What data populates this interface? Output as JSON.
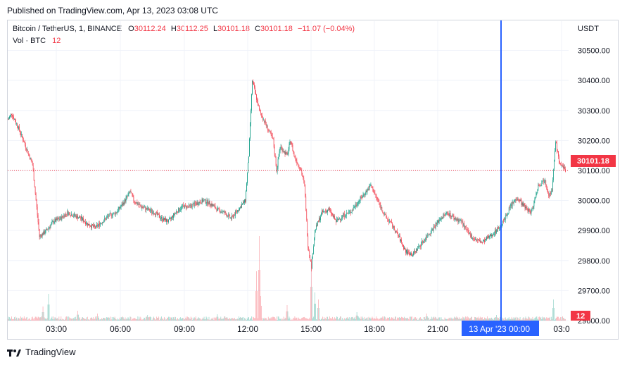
{
  "header": {
    "published": "Published on TradingView.com, Apr 13, 2023 03:08 UTC"
  },
  "legend": {
    "symbol": "Bitcoin / TetherUS, 1, BINANCE",
    "o_label": "O",
    "o_value": "30112.24",
    "h_label": "H",
    "h_value": "30112.25",
    "l_label": "L",
    "l_value": "30101.18",
    "c_label": "C",
    "c_value": "30101.18",
    "change": "−11.07 (−0.04%)",
    "vol_label": "Vol · BTC",
    "vol_value": "12"
  },
  "price_axis": {
    "currency": "USDT",
    "last_price": "30101.18",
    "volume_badge": "12"
  },
  "crosshair": {
    "label": "13 Apr '23   00:00"
  },
  "footer": {
    "brand": "TradingView"
  },
  "colors": {
    "up": "#089981",
    "down": "#f23645",
    "crosshair": "#2962ff",
    "grid": "#f0f3fa"
  },
  "chart_data": {
    "type": "candlestick",
    "title": "Bitcoin / TetherUS, 1, BINANCE",
    "ylabel": "USDT",
    "ylim": [
      29560,
      30560
    ],
    "yticks": [
      29600,
      29700,
      29800,
      29900,
      30000,
      30100,
      30200,
      30300,
      30400,
      30500
    ],
    "ytick_labels": [
      "29600.00",
      "29700.00",
      "29800.00",
      "29900.00",
      "30000.00",
      "30100.00",
      "30200.00",
      "30300.00",
      "30400.00",
      "30500.00"
    ],
    "xtick_labels": [
      "03:00",
      "06:00",
      "09:00",
      "12:00",
      "15:00",
      "18:00",
      "21:00",
      "00:00",
      "03:0"
    ],
    "last_price": 30101.18,
    "price_path": [
      [
        0,
        30270
      ],
      [
        5,
        30290
      ],
      [
        15,
        30240
      ],
      [
        25,
        30180
      ],
      [
        35,
        30120
      ],
      [
        40,
        30000
      ],
      [
        45,
        29880
      ],
      [
        55,
        29900
      ],
      [
        65,
        29930
      ],
      [
        75,
        29940
      ],
      [
        85,
        29960
      ],
      [
        95,
        29950
      ],
      [
        105,
        29940
      ],
      [
        115,
        29920
      ],
      [
        125,
        29910
      ],
      [
        135,
        29930
      ],
      [
        145,
        29950
      ],
      [
        155,
        29960
      ],
      [
        165,
        29990
      ],
      [
        175,
        30030
      ],
      [
        180,
        30000
      ],
      [
        190,
        29980
      ],
      [
        200,
        29970
      ],
      [
        210,
        29960
      ],
      [
        220,
        29940
      ],
      [
        230,
        29930
      ],
      [
        240,
        29960
      ],
      [
        250,
        29980
      ],
      [
        260,
        29980
      ],
      [
        270,
        29990
      ],
      [
        280,
        30000
      ],
      [
        290,
        29990
      ],
      [
        300,
        29970
      ],
      [
        310,
        29960
      ],
      [
        320,
        29940
      ],
      [
        330,
        29970
      ],
      [
        340,
        30000
      ],
      [
        345,
        30150
      ],
      [
        350,
        30400
      ],
      [
        360,
        30300
      ],
      [
        370,
        30250
      ],
      [
        380,
        30200
      ],
      [
        385,
        30100
      ],
      [
        390,
        30180
      ],
      [
        400,
        30150
      ],
      [
        405,
        30200
      ],
      [
        410,
        30150
      ],
      [
        420,
        30100
      ],
      [
        425,
        30050
      ],
      [
        430,
        29850
      ],
      [
        435,
        29780
      ],
      [
        440,
        29900
      ],
      [
        450,
        29960
      ],
      [
        460,
        29970
      ],
      [
        470,
        29930
      ],
      [
        480,
        29950
      ],
      [
        490,
        29960
      ],
      [
        500,
        29990
      ],
      [
        510,
        30020
      ],
      [
        520,
        30050
      ],
      [
        530,
        30000
      ],
      [
        540,
        29950
      ],
      [
        550,
        29920
      ],
      [
        560,
        29880
      ],
      [
        570,
        29830
      ],
      [
        580,
        29820
      ],
      [
        590,
        29850
      ],
      [
        600,
        29880
      ],
      [
        610,
        29910
      ],
      [
        620,
        29940
      ],
      [
        630,
        29960
      ],
      [
        640,
        29940
      ],
      [
        650,
        29930
      ],
      [
        660,
        29890
      ],
      [
        670,
        29870
      ],
      [
        680,
        29860
      ],
      [
        690,
        29880
      ],
      [
        700,
        29900
      ],
      [
        710,
        29930
      ],
      [
        720,
        29980
      ],
      [
        730,
        30010
      ],
      [
        740,
        29980
      ],
      [
        750,
        29960
      ],
      [
        760,
        30050
      ],
      [
        770,
        30070
      ],
      [
        775,
        30020
      ],
      [
        780,
        30030
      ],
      [
        785,
        30200
      ],
      [
        790,
        30130
      ],
      [
        795,
        30110
      ],
      [
        799,
        30101
      ]
    ],
    "volume_spikes": [
      [
        50,
        20
      ],
      [
        58,
        38
      ],
      [
        100,
        14
      ],
      [
        128,
        10
      ],
      [
        200,
        8
      ],
      [
        300,
        9
      ],
      [
        356,
        70
      ],
      [
        360,
        120
      ],
      [
        362,
        35
      ],
      [
        400,
        22
      ],
      [
        435,
        80
      ],
      [
        440,
        40
      ],
      [
        445,
        30
      ],
      [
        500,
        12
      ],
      [
        600,
        10
      ],
      [
        700,
        8
      ],
      [
        782,
        30
      ]
    ],
    "crosshair_x_label": "13 Apr '23 00:00"
  }
}
